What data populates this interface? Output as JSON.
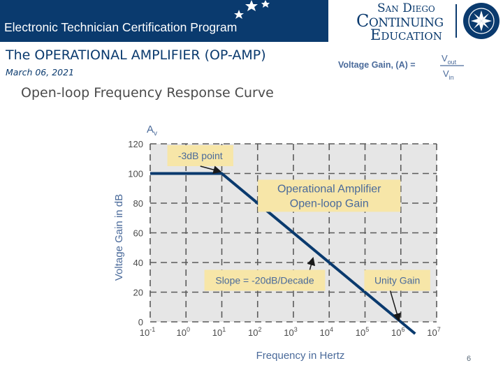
{
  "header": {
    "program_title": "Electronic Technician Certification Program",
    "logo": {
      "line1": "San Diego",
      "line2": "Continuing",
      "line3": "Education"
    },
    "colors": {
      "banner": "#0a3a6e",
      "logo": "#0a3a6e"
    }
  },
  "slide": {
    "title": "The OPERATIONAL AMPLIFIER (OP-AMP)",
    "date": "March 06, 2021",
    "page_number": "6"
  },
  "formula": {
    "lhs": "Voltage Gain, (A) =",
    "numerator": "V",
    "numerator_sub": "out",
    "denominator": "V",
    "denominator_sub": "in"
  },
  "figure_title": "Open-loop Frequency Response Curve",
  "chart_data": {
    "type": "line",
    "title": "Open-loop Frequency Response Curve",
    "xlabel": "Frequency in Hertz",
    "ylabel": "Voltage Gain in dB",
    "y_axis_symbol": "A",
    "y_axis_symbol_sub": "v",
    "x_scale": "log",
    "xlim_exponent": [
      -1,
      7
    ],
    "ylim": [
      0,
      120
    ],
    "x_ticks": [
      {
        "base": "10",
        "exp": "-1"
      },
      {
        "base": "10",
        "exp": "0"
      },
      {
        "base": "10",
        "exp": "1"
      },
      {
        "base": "10",
        "exp": "2"
      },
      {
        "base": "10",
        "exp": "3"
      },
      {
        "base": "10",
        "exp": "4"
      },
      {
        "base": "10",
        "exp": "5"
      },
      {
        "base": "10",
        "exp": "6"
      },
      {
        "base": "10",
        "exp": "7"
      }
    ],
    "y_ticks": [
      "0",
      "20",
      "40",
      "60",
      "80",
      "100",
      "120"
    ],
    "series": [
      {
        "name": "Open-loop Gain",
        "points": [
          {
            "log_f": -1,
            "gain_db": 100
          },
          {
            "log_f": 1,
            "gain_db": 100
          },
          {
            "log_f": 6,
            "gain_db": 0
          },
          {
            "log_f": 6.4,
            "gain_db": -8
          }
        ],
        "color": "#0a3a6e"
      }
    ],
    "annotations": [
      {
        "id": "3db",
        "text": "-3dB point",
        "box_log_f": 0.4,
        "box_gain": 112,
        "arrow_to": {
          "log_f": 1,
          "gain_db": 100
        }
      },
      {
        "id": "op",
        "lines": [
          "Operational Amplifier",
          "Open-loop Gain"
        ],
        "box_log_f": 4.0,
        "box_gain": 85
      },
      {
        "id": "slope",
        "text": "Slope = -20dB/Decade",
        "box_log_f": 2.2,
        "box_gain": 28,
        "arrow_to": {
          "log_f": 3.6,
          "gain_db": 41
        }
      },
      {
        "id": "unity",
        "text": "Unity Gain",
        "box_log_f": 5.9,
        "box_gain": 28,
        "arrow_to": {
          "log_f": 6,
          "gain_db": 0
        }
      }
    ],
    "grid": true,
    "colors": {
      "plot_bg": "#e6e6e6",
      "grid": "#5a5a5a",
      "annotation_bg": "#f7e6a8",
      "annotation_text": "#4a6a9a"
    }
  }
}
